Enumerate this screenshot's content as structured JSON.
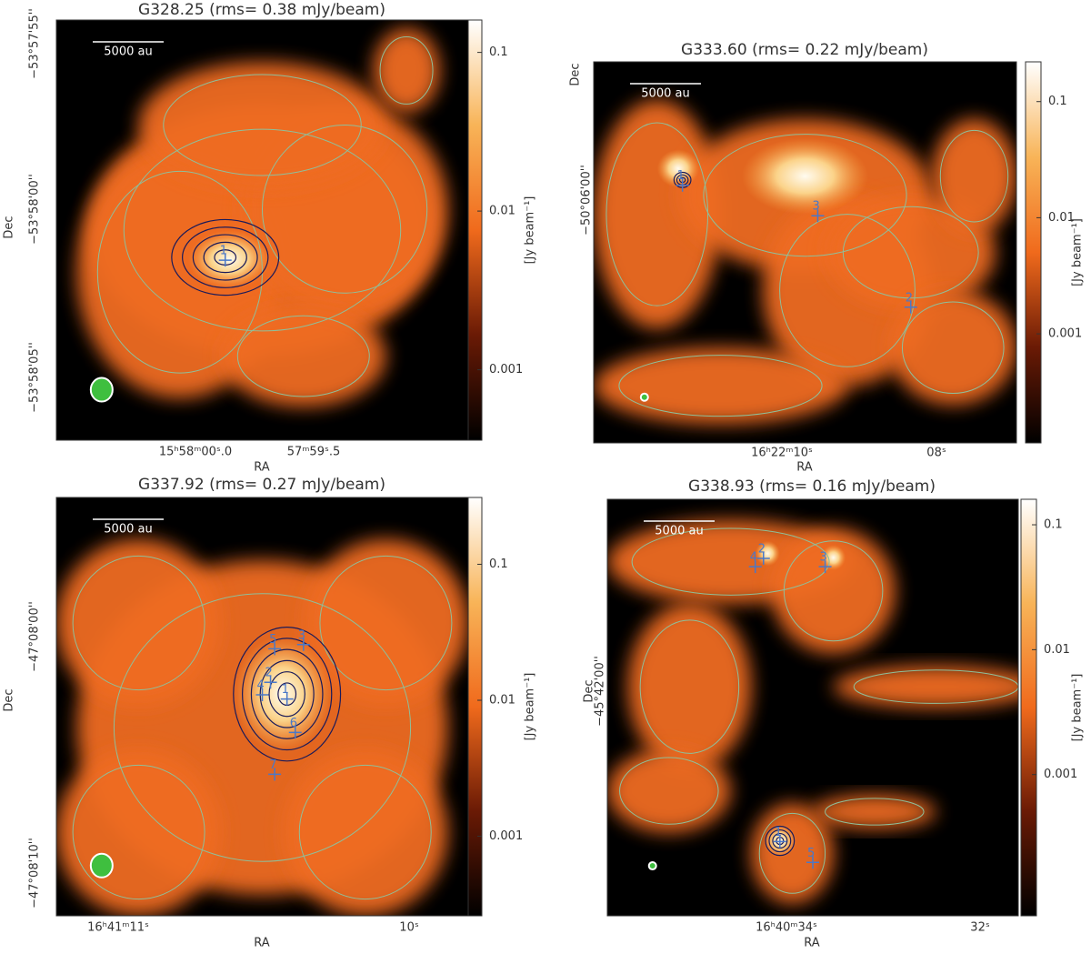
{
  "chart_data": [
    {
      "type": "image",
      "title": "G328.25 (rms= 0.38 mJy/beam)",
      "xlabel": "RA",
      "ylabel": "Dec",
      "xticks": [
        "15ʰ58ᵐ00ˢ.0",
        "57ᵐ59ˢ.5"
      ],
      "yticks": [
        "−53°57'55''",
        "−53°58'00''",
        "−53°58'05''"
      ],
      "scale_bar": "5000 au",
      "sources": [
        "1"
      ],
      "colorbar": {
        "label": "[Jy beam⁻¹]",
        "scale": "log",
        "ylim": [
          0.00036,
          0.16
        ],
        "yticks": [
          0.1,
          0.01,
          0.001
        ]
      }
    },
    {
      "type": "image",
      "title": "G333.60 (rms= 0.22 mJy/beam)",
      "xlabel": "RA",
      "ylabel": "Dec",
      "xticks": [
        "16ʰ22ᵐ10ˢ",
        "08ˢ"
      ],
      "yticks": [
        "−50°06'00''"
      ],
      "scale_bar": "5000 au",
      "sources": [
        "1",
        "2",
        "3"
      ],
      "colorbar": {
        "label": "[Jy beam⁻¹]",
        "scale": "log",
        "ylim": [
          0.000115,
          0.22
        ],
        "yticks": [
          0.1,
          0.01,
          0.001
        ]
      }
    },
    {
      "type": "image",
      "title": "G337.92 (rms= 0.27 mJy/beam)",
      "xlabel": "RA",
      "ylabel": "Dec",
      "xticks": [
        "16ʰ41ᵐ11ˢ",
        "10ˢ"
      ],
      "yticks": [
        "−47°08'00''",
        "−47°08'10''"
      ],
      "scale_bar": "5000 au",
      "sources": [
        "1",
        "2",
        "3",
        "4",
        "5",
        "6",
        "7"
      ],
      "colorbar": {
        "label": "[Jy beam⁻¹]",
        "scale": "log",
        "ylim": [
          0.00026,
          0.31
        ],
        "yticks": [
          0.1,
          0.01,
          0.001
        ]
      }
    },
    {
      "type": "image",
      "title": "G338.93 (rms= 0.16 mJy/beam)",
      "xlabel": "RA",
      "ylabel": "Dec",
      "xticks": [
        "16ʰ40ᵐ34ˢ",
        "32ˢ"
      ],
      "yticks": [
        "−45°42'00''"
      ],
      "scale_bar": "5000 au",
      "sources": [
        "1",
        "2",
        "3",
        "4",
        "5"
      ],
      "colorbar": {
        "label": "[Jy beam⁻¹]",
        "scale": "log",
        "ylim": [
          7.4e-05,
          0.16
        ],
        "yticks": [
          0.1,
          0.01,
          0.001
        ]
      }
    }
  ]
}
